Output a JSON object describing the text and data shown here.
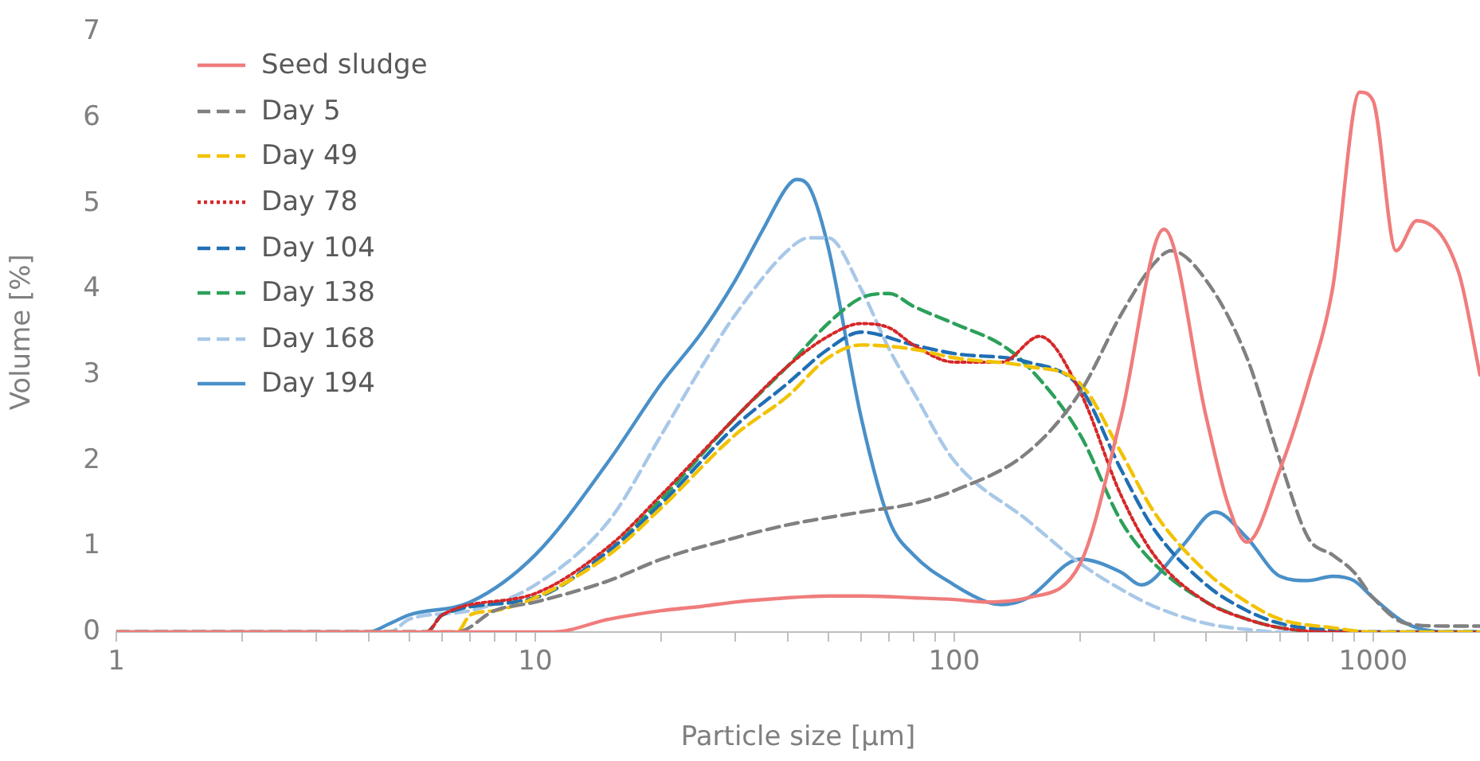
{
  "chart_data": {
    "type": "line",
    "xlabel": "Particle size [µm]",
    "ylabel": "Volume [%]",
    "log": "x",
    "grid": false,
    "legend": "top left",
    "marker": "none",
    "xlim": [
      1,
      1800
    ],
    "ylim": [
      0,
      7
    ],
    "yticks": [
      0,
      1,
      2,
      3,
      4,
      5,
      6,
      7
    ],
    "xticks": [
      1,
      {
        "value": 2,
        "label": null
      },
      {
        "value": 3,
        "label": null
      },
      {
        "value": 4,
        "label": null
      },
      {
        "value": 5,
        "label": null
      },
      {
        "value": 6,
        "label": null
      },
      {
        "value": 7,
        "label": null
      },
      {
        "value": 8,
        "label": null
      },
      {
        "value": 9,
        "label": null
      },
      10,
      {
        "value": 20,
        "label": null
      },
      {
        "value": 30,
        "label": null
      },
      {
        "value": 40,
        "label": null
      },
      {
        "value": 50,
        "label": null
      },
      {
        "value": 60,
        "label": null
      },
      {
        "value": 70,
        "label": null
      },
      {
        "value": 80,
        "label": null
      },
      {
        "value": 90,
        "label": null
      },
      100,
      {
        "value": 200,
        "label": null
      },
      {
        "value": 300,
        "label": null
      },
      {
        "value": 400,
        "label": null
      },
      {
        "value": 500,
        "label": null
      },
      {
        "value": 600,
        "label": null
      },
      {
        "value": 700,
        "label": null
      },
      {
        "value": 800,
        "label": null
      },
      {
        "value": 900,
        "label": null
      },
      1000
    ],
    "series": [
      {
        "name": "Seed sludge",
        "color": "#f07c7c",
        "line_style": "solid",
        "x": [
          1,
          11,
          15,
          20,
          25,
          30,
          40,
          50,
          60,
          80,
          100,
          120,
          150,
          200,
          250,
          317,
          400,
          450,
          500,
          600,
          700,
          800,
          929,
          1000,
          1135,
          1271,
          1600,
          1800
        ],
        "values": [
          0,
          0,
          0.15,
          0.25,
          0.3,
          0.35,
          0.4,
          0.42,
          0.42,
          0.4,
          0.38,
          0.35,
          0.4,
          0.8,
          2.5,
          4.7,
          2.5,
          1.5,
          1.05,
          1.9,
          2.9,
          4.0,
          6.3,
          6.2,
          4.45,
          4.8,
          4.2,
          3.0
        ]
      },
      {
        "name": "Day 5",
        "color": "#808080",
        "line_style": "dashed",
        "x": [
          1,
          6.5,
          8,
          10,
          15,
          20,
          30,
          40,
          60,
          80,
          100,
          150,
          200,
          250,
          300,
          330,
          400,
          500,
          600,
          700,
          800,
          900,
          1000,
          1200,
          1500,
          1800
        ],
        "values": [
          0,
          0,
          0.25,
          0.35,
          0.6,
          0.85,
          1.1,
          1.25,
          1.4,
          1.5,
          1.65,
          2.1,
          2.8,
          3.7,
          4.3,
          4.45,
          4.1,
          3.2,
          2.0,
          1.1,
          0.9,
          0.7,
          0.4,
          0.1,
          0.07,
          0.07
        ]
      },
      {
        "name": "Day 49",
        "color": "#f2c200",
        "line_style": "dashed",
        "x": [
          1,
          6.5,
          7,
          8,
          10,
          15,
          20,
          30,
          40,
          50,
          60,
          80,
          100,
          150,
          200,
          250,
          300,
          400,
          500,
          600,
          800,
          1000,
          1800
        ],
        "values": [
          0,
          0,
          0.2,
          0.25,
          0.4,
          0.9,
          1.45,
          2.3,
          2.75,
          3.2,
          3.35,
          3.3,
          3.2,
          3.1,
          2.9,
          2.1,
          1.4,
          0.7,
          0.35,
          0.15,
          0.05,
          0,
          0
        ]
      },
      {
        "name": "Day 78",
        "color": "#d62728",
        "line_style": "dotted",
        "x": [
          1,
          5.5,
          6,
          10,
          15,
          20,
          30,
          40,
          50,
          60,
          70,
          80,
          100,
          130,
          160,
          200,
          250,
          300,
          400,
          500,
          600,
          800,
          1800
        ],
        "values": [
          0,
          0,
          0.2,
          0.45,
          1.0,
          1.6,
          2.5,
          3.1,
          3.45,
          3.6,
          3.55,
          3.35,
          3.15,
          3.15,
          3.45,
          2.8,
          1.6,
          0.9,
          0.35,
          0.15,
          0.05,
          0,
          0
        ]
      },
      {
        "name": "Day 104",
        "color": "#1f6fb4",
        "line_style": "dashed",
        "x": [
          1,
          5.5,
          6,
          10,
          15,
          20,
          30,
          40,
          50,
          60,
          80,
          100,
          150,
          200,
          250,
          300,
          400,
          500,
          600,
          800,
          1000,
          1800
        ],
        "values": [
          0,
          0,
          0.2,
          0.4,
          0.95,
          1.5,
          2.4,
          2.9,
          3.3,
          3.5,
          3.35,
          3.25,
          3.15,
          2.85,
          1.9,
          1.2,
          0.55,
          0.25,
          0.1,
          0.02,
          0,
          0
        ]
      },
      {
        "name": "Day 138",
        "color": "#2ca05a",
        "line_style": "dashed",
        "x": [
          1,
          5.5,
          6,
          10,
          15,
          20,
          30,
          40,
          50,
          60,
          70,
          80,
          100,
          130,
          150,
          200,
          250,
          300,
          400,
          500,
          600,
          800,
          1800
        ],
        "values": [
          0,
          0,
          0.2,
          0.4,
          0.95,
          1.55,
          2.5,
          3.1,
          3.6,
          3.9,
          3.95,
          3.8,
          3.6,
          3.35,
          3.1,
          2.3,
          1.3,
          0.8,
          0.35,
          0.15,
          0.05,
          0,
          0
        ]
      },
      {
        "name": "Day 168",
        "color": "#a8c8e8",
        "line_style": "dashed",
        "x": [
          1,
          4.5,
          5,
          7,
          10,
          15,
          20,
          25,
          30,
          40,
          45,
          50,
          60,
          70,
          80,
          100,
          150,
          200,
          250,
          300,
          400,
          500,
          600,
          1800
        ],
        "values": [
          0,
          0,
          0.15,
          0.25,
          0.55,
          1.3,
          2.3,
          3.1,
          3.7,
          4.45,
          4.6,
          4.6,
          4.0,
          3.3,
          2.8,
          2.0,
          1.3,
          0.8,
          0.5,
          0.3,
          0.1,
          0.03,
          0,
          0
        ]
      },
      {
        "name": "Day 194",
        "color": "#4a90c8",
        "line_style": "solid",
        "x": [
          1,
          4,
          4.5,
          5,
          7,
          10,
          15,
          20,
          25,
          30,
          35,
          40,
          42,
          45,
          50,
          60,
          70,
          80,
          100,
          120,
          130,
          150,
          200,
          250,
          280,
          350,
          420,
          500,
          600,
          700,
          800,
          900,
          1000,
          1200,
          1500,
          1800
        ],
        "values": [
          0,
          0,
          0.1,
          0.2,
          0.35,
          0.9,
          2.0,
          2.9,
          3.5,
          4.1,
          4.7,
          5.2,
          5.28,
          5.2,
          4.5,
          2.5,
          1.3,
          0.9,
          0.55,
          0.35,
          0.32,
          0.4,
          0.85,
          0.7,
          0.55,
          1.0,
          1.4,
          1.1,
          0.65,
          0.6,
          0.65,
          0.6,
          0.4,
          0.1,
          0,
          0
        ]
      }
    ]
  }
}
